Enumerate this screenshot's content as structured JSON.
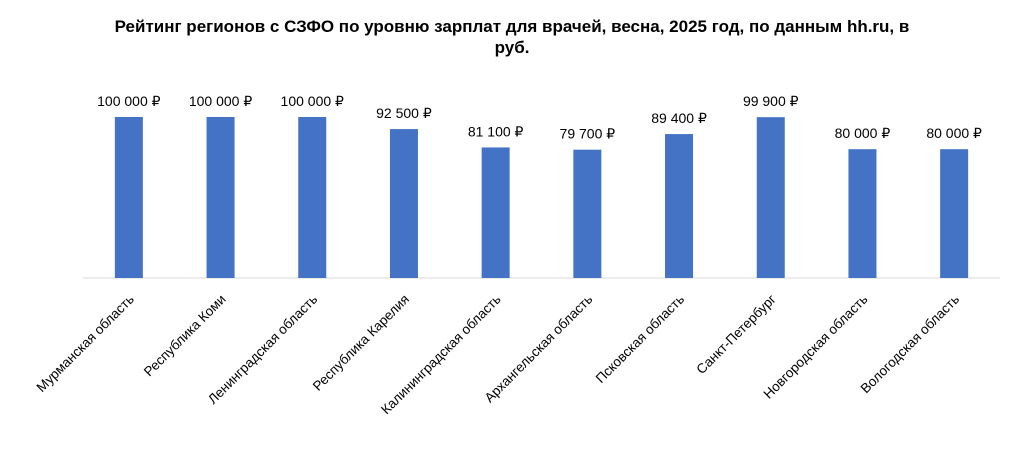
{
  "chart_data": {
    "type": "bar",
    "title": "Рейтинг регионов с СЗФО по уровню зарплат для врачей, весна, 2025 год, по данным hh.ru, в руб.",
    "xlabel": "",
    "ylabel": "",
    "ylim": [
      0,
      100000
    ],
    "grid": false,
    "legend": "none",
    "bar_color": "#4472C4",
    "categories": [
      "Мурманская область",
      "Республика Коми",
      "Ленинградская область",
      "Республика Карелия",
      "Калининградская область",
      "Архангельская область",
      "Псковская область",
      "Санкт-Петербург",
      "Новгородская область",
      "Вологодская область"
    ],
    "values": [
      100000,
      100000,
      100000,
      92500,
      81100,
      79700,
      89400,
      99900,
      80000,
      80000
    ],
    "data_labels": [
      "100 000 ₽",
      "100 000 ₽",
      "100 000 ₽",
      "92 500 ₽",
      "81 100 ₽",
      "79 700 ₽",
      "89 400 ₽",
      "99 900 ₽",
      "80 000 ₽",
      "80 000 ₽"
    ]
  }
}
